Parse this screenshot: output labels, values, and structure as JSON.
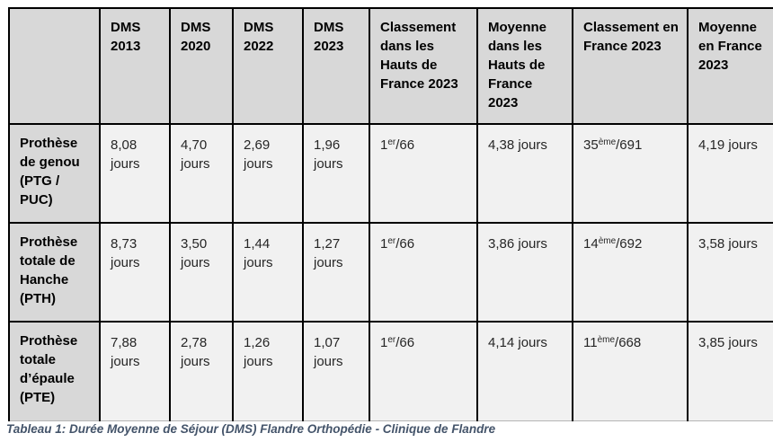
{
  "caption": "Tableau 1: Durée Moyenne de Séjour (DMS) Flandre Orthopédie - Clinique de Flandre",
  "colors": {
    "header_bg": "#d8d8d8",
    "body_bg": "#f1f1f1",
    "border": "#000000",
    "caption_text": "#44546a"
  },
  "table": {
    "header": [
      "",
      "DMS 2013",
      "DMS 2020",
      "DMS 2022",
      "DMS 2023",
      "Classement dans les Hauts de France 2023",
      "Moyenne dans les Hauts de France 2023",
      "Classement en France 2023",
      "Moyenne en France 2023"
    ],
    "rows": [
      {
        "label": "Prothèse de genou (PTG / PUC)",
        "dms_2013": "8,08 jours",
        "dms_2020": "4,70 jours",
        "dms_2022": "2,69 jours",
        "dms_2023": "1,96 jours",
        "classement_hdf": {
          "base": "1",
          "sup": "er",
          "rest": "/66"
        },
        "moyenne_hdf": "4,38 jours",
        "classement_fr": {
          "base": "35",
          "sup": "ème",
          "rest": "/691"
        },
        "moyenne_fr": "4,19 jours"
      },
      {
        "label": "Prothèse totale de Hanche (PTH)",
        "dms_2013": "8,73 jours",
        "dms_2020": "3,50 jours",
        "dms_2022": "1,44 jours",
        "dms_2023": "1,27 jours",
        "classement_hdf": {
          "base": "1",
          "sup": "er",
          "rest": "/66"
        },
        "moyenne_hdf": "3,86 jours",
        "classement_fr": {
          "base": "14",
          "sup": "ème",
          "rest": "/692"
        },
        "moyenne_fr": "3,58 jours"
      },
      {
        "label": "Prothèse totale d’épaule (PTE)",
        "dms_2013": "7,88 jours",
        "dms_2020": "2,78 jours",
        "dms_2022": "1,26 jours",
        "dms_2023": "1,07 jours",
        "classement_hdf": {
          "base": "1",
          "sup": "er",
          "rest": "/66"
        },
        "moyenne_hdf": "4,14 jours",
        "classement_fr": {
          "base": "11",
          "sup": "ème",
          "rest": "/668"
        },
        "moyenne_fr": "3,85 jours"
      }
    ]
  }
}
